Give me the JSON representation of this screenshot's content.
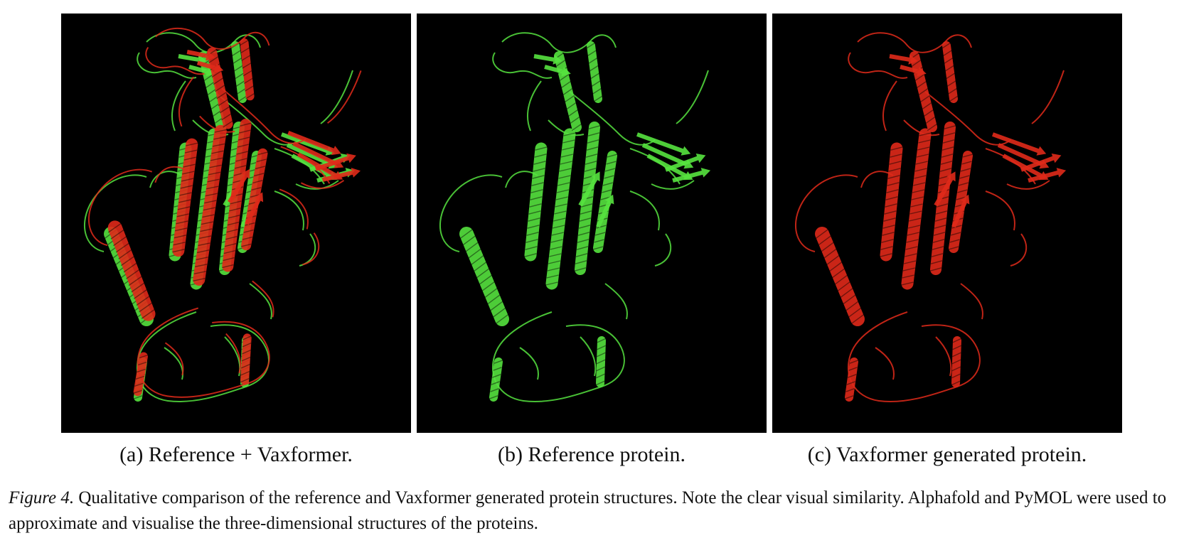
{
  "figure": {
    "panels": [
      {
        "id": "a",
        "caption": "(a) Reference + Vaxformer.",
        "render": [
          "#56e33f",
          "#e02a1a"
        ]
      },
      {
        "id": "b",
        "caption": "(b) Reference protein.",
        "render": [
          "#56e33f"
        ]
      },
      {
        "id": "c",
        "caption": "(c) Vaxformer generated protein.",
        "render": [
          "#e02a1a"
        ]
      }
    ],
    "caption": {
      "label": "Figure 4.",
      "text": " Qualitative comparison of the reference and Vaxformer generated protein structures. Note the clear visual similarity. Alphafold and PyMOL were used to approximate and visualise the three-dimensional structures of the proteins."
    }
  },
  "colors": {
    "reference": "#56e33f",
    "vaxformer": "#e02a1a",
    "background": "#000000"
  }
}
